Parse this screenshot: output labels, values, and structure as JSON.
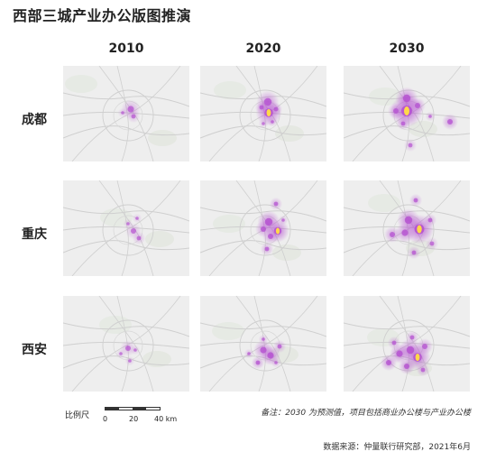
{
  "title": "西部三城产业办公版图推演",
  "years": [
    "2010",
    "2020",
    "2030"
  ],
  "cities": [
    "成都",
    "重庆",
    "西安"
  ],
  "scale": {
    "label": "比例尺",
    "ticks": [
      "0",
      "20",
      "40 km"
    ]
  },
  "note": "备注：2030 为预测值，项目包括商业办公楼与产业办公楼",
  "source": "数据来源：仲量联行研究部，2021年6月",
  "colors": {
    "hotspot": "#b44fd0",
    "core": "#ffd84a",
    "base_map": "#eeeeee",
    "road": "#cfcfcf"
  }
}
